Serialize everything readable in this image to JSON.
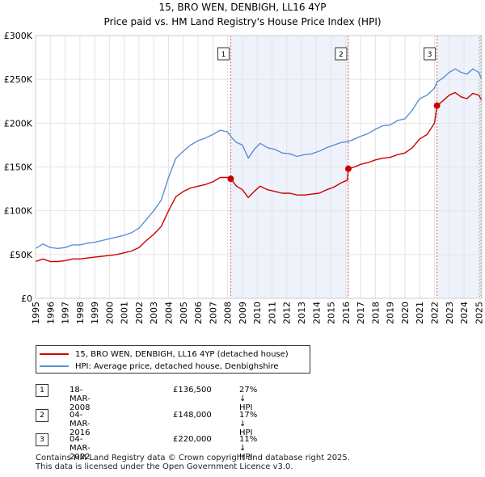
{
  "chart_data": {
    "type": "line",
    "title": "15, BRO WEN, DENBIGH, LL16 4YP",
    "subtitle": "Price paid vs. HM Land Registry's House Price Index (HPI)",
    "x_ticks": [
      "1995",
      "1996",
      "1997",
      "1998",
      "1999",
      "2000",
      "2001",
      "2002",
      "2003",
      "2004",
      "2005",
      "2006",
      "2007",
      "2008",
      "2009",
      "2010",
      "2011",
      "2012",
      "2013",
      "2014",
      "2015",
      "2016",
      "2017",
      "2018",
      "2019",
      "2020",
      "2021",
      "2022",
      "2023",
      "2024",
      "2025"
    ],
    "y_ticks": [
      "£0",
      "£50K",
      "£100K",
      "£150K",
      "£200K",
      "£250K",
      "£300K"
    ],
    "y_tick_values": [
      0,
      50000,
      100000,
      150000,
      200000,
      250000,
      300000
    ],
    "xlim": [
      1995,
      2025.2
    ],
    "ylim": [
      0,
      300000
    ],
    "shaded_ranges": [
      [
        2008.21,
        2016.17
      ],
      [
        2022.17,
        2025.2
      ]
    ],
    "hatched_from": 2025.0,
    "series": [
      {
        "name": "HPI: Average price, detached house, Denbighshire",
        "color": "#5b8fd4",
        "points": [
          [
            1995.0,
            57000
          ],
          [
            1995.5,
            62000
          ],
          [
            1996.0,
            58000
          ],
          [
            1996.5,
            57000
          ],
          [
            1997.0,
            58000
          ],
          [
            1997.5,
            61000
          ],
          [
            1998.0,
            61000
          ],
          [
            1998.5,
            63000
          ],
          [
            1999.0,
            64000
          ],
          [
            1999.5,
            66000
          ],
          [
            2000.0,
            68000
          ],
          [
            2000.5,
            70000
          ],
          [
            2001.0,
            72000
          ],
          [
            2001.5,
            75000
          ],
          [
            2002.0,
            80000
          ],
          [
            2002.5,
            90000
          ],
          [
            2003.0,
            100000
          ],
          [
            2003.5,
            112000
          ],
          [
            2004.0,
            138000
          ],
          [
            2004.5,
            160000
          ],
          [
            2005.0,
            168000
          ],
          [
            2005.5,
            175000
          ],
          [
            2006.0,
            180000
          ],
          [
            2006.5,
            183000
          ],
          [
            2007.0,
            187000
          ],
          [
            2007.5,
            192000
          ],
          [
            2008.0,
            190000
          ],
          [
            2008.3,
            183000
          ],
          [
            2008.6,
            178000
          ],
          [
            2009.0,
            175000
          ],
          [
            2009.4,
            160000
          ],
          [
            2009.8,
            170000
          ],
          [
            2010.2,
            177000
          ],
          [
            2010.7,
            172000
          ],
          [
            2011.2,
            170000
          ],
          [
            2011.7,
            166000
          ],
          [
            2012.2,
            165000
          ],
          [
            2012.7,
            162000
          ],
          [
            2013.2,
            164000
          ],
          [
            2013.7,
            165000
          ],
          [
            2014.2,
            168000
          ],
          [
            2014.7,
            172000
          ],
          [
            2015.2,
            175000
          ],
          [
            2015.7,
            178000
          ],
          [
            2016.17,
            179000
          ],
          [
            2016.6,
            182000
          ],
          [
            2017.0,
            185000
          ],
          [
            2017.5,
            188000
          ],
          [
            2018.0,
            193000
          ],
          [
            2018.5,
            197000
          ],
          [
            2019.0,
            198000
          ],
          [
            2019.5,
            203000
          ],
          [
            2020.0,
            205000
          ],
          [
            2020.5,
            215000
          ],
          [
            2021.0,
            228000
          ],
          [
            2021.5,
            232000
          ],
          [
            2022.0,
            240000
          ],
          [
            2022.17,
            247000
          ],
          [
            2022.6,
            252000
          ],
          [
            2023.0,
            258000
          ],
          [
            2023.4,
            262000
          ],
          [
            2023.8,
            258000
          ],
          [
            2024.2,
            256000
          ],
          [
            2024.6,
            262000
          ],
          [
            2025.0,
            258000
          ],
          [
            2025.2,
            250000
          ]
        ]
      },
      {
        "name": "15, BRO WEN, DENBIGH, LL16 4YP (detached house)",
        "color": "#cc0000",
        "points": [
          [
            1995.0,
            42000
          ],
          [
            1995.5,
            45000
          ],
          [
            1996.0,
            42000
          ],
          [
            1996.5,
            42000
          ],
          [
            1997.0,
            43000
          ],
          [
            1997.5,
            45000
          ],
          [
            1998.0,
            45000
          ],
          [
            1998.5,
            46000
          ],
          [
            1999.0,
            47000
          ],
          [
            1999.5,
            48000
          ],
          [
            2000.0,
            49000
          ],
          [
            2000.5,
            50000
          ],
          [
            2001.0,
            52000
          ],
          [
            2001.5,
            54000
          ],
          [
            2002.0,
            58000
          ],
          [
            2002.5,
            66000
          ],
          [
            2003.0,
            73000
          ],
          [
            2003.5,
            82000
          ],
          [
            2004.0,
            100000
          ],
          [
            2004.5,
            116000
          ],
          [
            2005.0,
            122000
          ],
          [
            2005.5,
            126000
          ],
          [
            2006.0,
            128000
          ],
          [
            2006.5,
            130000
          ],
          [
            2007.0,
            133000
          ],
          [
            2007.5,
            138000
          ],
          [
            2008.0,
            138000
          ],
          [
            2008.21,
            136500
          ],
          [
            2008.6,
            128000
          ],
          [
            2009.0,
            124000
          ],
          [
            2009.4,
            115000
          ],
          [
            2009.8,
            122000
          ],
          [
            2010.2,
            128000
          ],
          [
            2010.7,
            124000
          ],
          [
            2011.2,
            122000
          ],
          [
            2011.7,
            120000
          ],
          [
            2012.2,
            120000
          ],
          [
            2012.7,
            118000
          ],
          [
            2013.2,
            118000
          ],
          [
            2013.7,
            119000
          ],
          [
            2014.2,
            120000
          ],
          [
            2014.7,
            124000
          ],
          [
            2015.2,
            127000
          ],
          [
            2015.7,
            132000
          ],
          [
            2016.1,
            135000
          ],
          [
            2016.17,
            148000
          ],
          [
            2016.6,
            150000
          ],
          [
            2017.0,
            153000
          ],
          [
            2017.5,
            155000
          ],
          [
            2018.0,
            158000
          ],
          [
            2018.5,
            160000
          ],
          [
            2019.0,
            161000
          ],
          [
            2019.5,
            164000
          ],
          [
            2020.0,
            166000
          ],
          [
            2020.5,
            172000
          ],
          [
            2021.0,
            182000
          ],
          [
            2021.5,
            187000
          ],
          [
            2022.0,
            200000
          ],
          [
            2022.17,
            220000
          ],
          [
            2022.6,
            226000
          ],
          [
            2023.0,
            232000
          ],
          [
            2023.4,
            235000
          ],
          [
            2023.8,
            230000
          ],
          [
            2024.2,
            228000
          ],
          [
            2024.6,
            234000
          ],
          [
            2025.0,
            232000
          ],
          [
            2025.2,
            226000
          ]
        ]
      }
    ],
    "sales": [
      {
        "label": "1",
        "x": 2008.21,
        "price": 136500
      },
      {
        "label": "2",
        "x": 2016.17,
        "price": 148000
      },
      {
        "label": "3",
        "x": 2022.17,
        "price": 220000
      }
    ]
  },
  "legend": {
    "property": "15, BRO WEN, DENBIGH, LL16 4YP (detached house)",
    "hpi": "HPI: Average price, detached house, Denbighshire",
    "property_color": "#cc0000",
    "hpi_color": "#5b8fd4"
  },
  "transactions": [
    {
      "num": "1",
      "date": "18-MAR-2008",
      "price": "£136,500",
      "hpi": "27% ↓ HPI"
    },
    {
      "num": "2",
      "date": "04-MAR-2016",
      "price": "£148,000",
      "hpi": "17% ↓ HPI"
    },
    {
      "num": "3",
      "date": "04-MAR-2022",
      "price": "£220,000",
      "hpi": "11% ↓ HPI"
    }
  ],
  "footer": {
    "line1": "Contains HM Land Registry data © Crown copyright and database right 2025.",
    "line2": "This data is licensed under the Open Government Licence v3.0."
  }
}
